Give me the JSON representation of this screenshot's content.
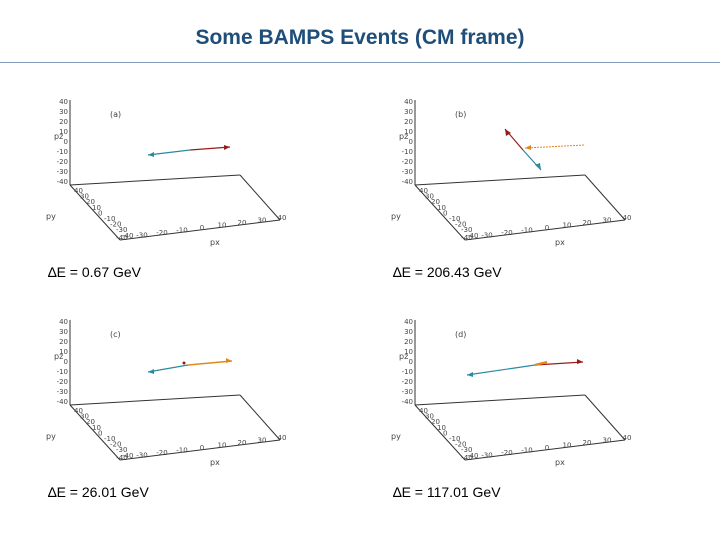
{
  "title": "Some BAMPS Events (CM frame)",
  "axis": {
    "pz_label": "pz",
    "py_label": "py",
    "px_label": "px",
    "pz_ticks": [
      "40",
      "30",
      "20",
      "10",
      "0",
      "-10",
      "-20",
      "-30",
      "-40"
    ],
    "py_ticks": [
      "40",
      "30",
      "20",
      "10",
      "0",
      "-10",
      "-20",
      "-30",
      "-40"
    ],
    "px_ticks": [
      "-40",
      "-30",
      "-20",
      "-10",
      "0",
      "10",
      "20",
      "30",
      "40"
    ]
  },
  "plots": [
    {
      "label": "(a)",
      "caption": "∆E = 0.67 GeV"
    },
    {
      "label": "(b)",
      "caption": "∆E = 206.43 GeV"
    },
    {
      "label": "(c)",
      "caption": "∆E = 26.01 GeV"
    },
    {
      "label": "(d)",
      "caption": "∆E = 117.01 GeV"
    }
  ],
  "colors": {
    "title": "#1f4e79",
    "arrow_teal": "#2a8aa0",
    "arrow_red": "#9a1b1b",
    "arrow_orange": "#e08a1e"
  }
}
